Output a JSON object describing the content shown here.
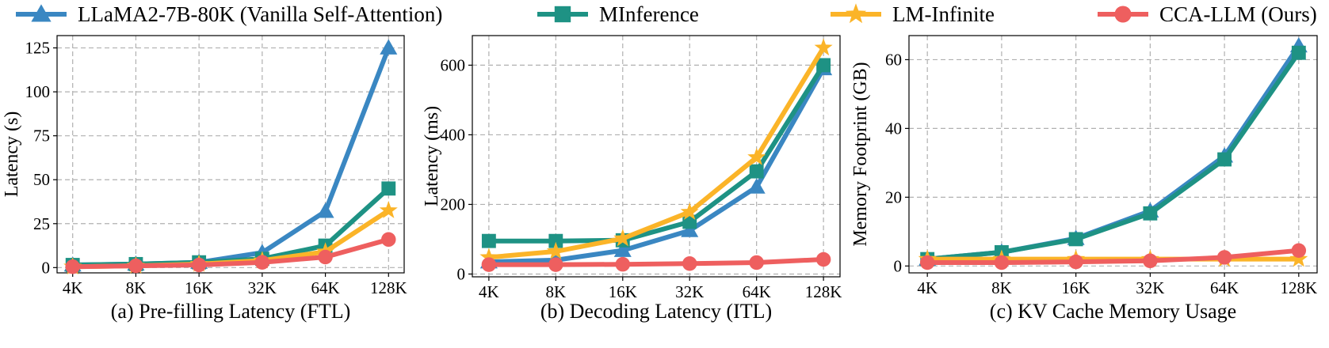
{
  "legend": [
    {
      "name": "LLaMA2-7B-80K (Vanilla Self-Attention)",
      "color": "#3a87c2",
      "marker": "triangle"
    },
    {
      "name": "MInference",
      "color": "#1e9284",
      "marker": "square"
    },
    {
      "name": "LM-Infinite",
      "color": "#fbb428",
      "marker": "star"
    },
    {
      "name": "CCA-LLM (Ours)",
      "color": "#ee5f5f",
      "marker": "circle"
    }
  ],
  "chart_data": [
    {
      "type": "line",
      "title": "(a) Pre-filling Latency (FTL)",
      "xlabel": "",
      "ylabel": "Latency (s)",
      "categories": [
        "4K",
        "8K",
        "16K",
        "32K",
        "64K",
        "128K"
      ],
      "ylim": [
        -3,
        132
      ],
      "yticks": [
        0,
        25,
        50,
        75,
        100,
        125
      ],
      "grid": true,
      "series": [
        {
          "name": "LLaMA2-7B-80K (Vanilla Self-Attention)",
          "values": [
            1.5,
            2,
            3,
            8.5,
            32,
            125
          ]
        },
        {
          "name": "MInference",
          "values": [
            1.5,
            2,
            3,
            5,
            12.5,
            45
          ]
        },
        {
          "name": "LM-Infinite",
          "values": [
            0.5,
            1,
            2,
            4,
            9,
            32.5
          ]
        },
        {
          "name": "CCA-LLM (Ours)",
          "values": [
            0.5,
            1,
            1.5,
            3,
            6,
            16
          ]
        }
      ]
    },
    {
      "type": "line",
      "title": "(b) Decoding Latency (ITL)",
      "xlabel": "",
      "ylabel": "Latency (ms)",
      "categories": [
        "4K",
        "8K",
        "16K",
        "32K",
        "64K",
        "128K"
      ],
      "ylim": [
        -8,
        685
      ],
      "yticks": [
        0,
        200,
        400,
        600
      ],
      "grid": true,
      "series": [
        {
          "name": "LLaMA2-7B-80K (Vanilla Self-Attention)",
          "values": [
            35,
            40,
            68,
            125,
            250,
            590
          ]
        },
        {
          "name": "MInference",
          "values": [
            95,
            95,
            97,
            150,
            295,
            600
          ]
        },
        {
          "name": "LM-Infinite",
          "values": [
            48,
            65,
            102,
            178,
            335,
            650
          ]
        },
        {
          "name": "CCA-LLM (Ours)",
          "values": [
            27,
            27,
            28,
            30,
            33,
            42
          ]
        }
      ]
    },
    {
      "type": "line",
      "title": "(c) KV Cache Memory Usage",
      "xlabel": "",
      "ylabel": "Memory Footprint (GB)",
      "categories": [
        "4K",
        "8K",
        "16K",
        "32K",
        "64K",
        "128K"
      ],
      "ylim": [
        -2,
        67
      ],
      "yticks": [
        0,
        20,
        40,
        60
      ],
      "grid": true,
      "series": [
        {
          "name": "LLaMA2-7B-80K (Vanilla Self-Attention)",
          "values": [
            2,
            4,
            8,
            16,
            32,
            64
          ]
        },
        {
          "name": "MInference",
          "values": [
            2,
            4,
            7.8,
            15.3,
            31,
            62
          ]
        },
        {
          "name": "LM-Infinite",
          "values": [
            2,
            2,
            2,
            2,
            2,
            2
          ]
        },
        {
          "name": "CCA-LLM (Ours)",
          "values": [
            1,
            1,
            1.2,
            1.5,
            2.5,
            4.5
          ]
        }
      ]
    }
  ]
}
